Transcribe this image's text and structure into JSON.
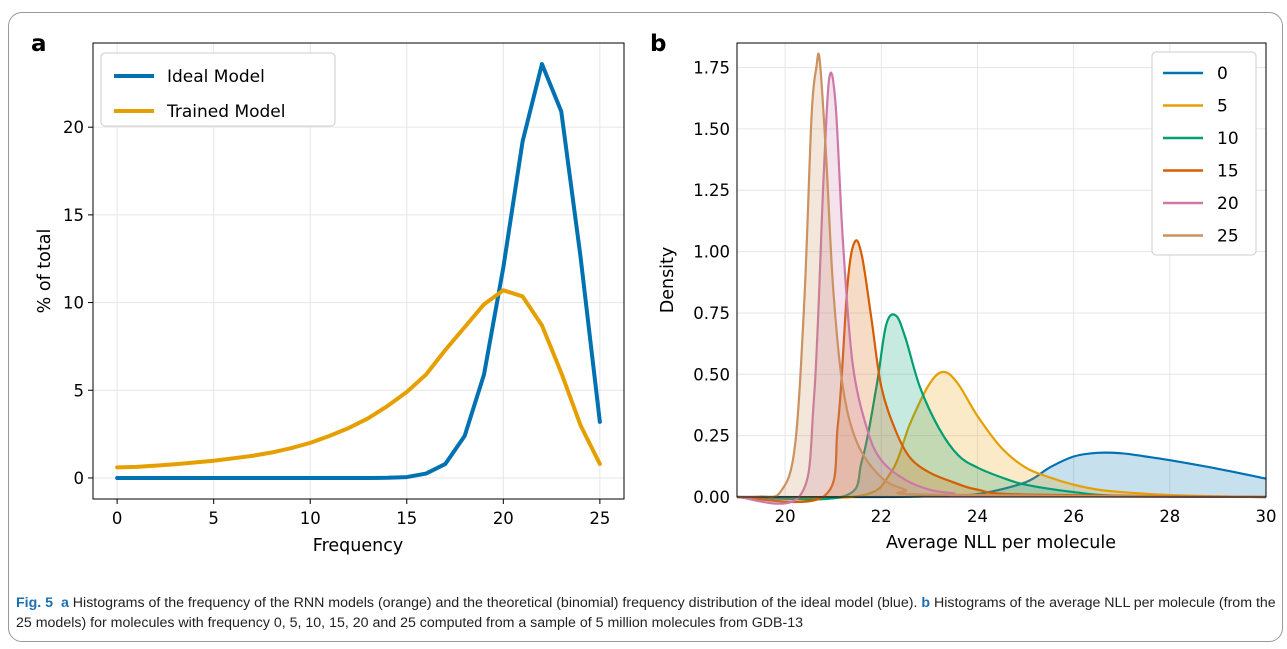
{
  "chart_data": [
    {
      "panel_label": "a",
      "type": "line",
      "xlabel": "Frequency",
      "ylabel": "% of total",
      "xlim": [
        -1.25,
        26.25
      ],
      "ylim": [
        -1.2,
        24.8
      ],
      "xticks": [
        0,
        5,
        10,
        15,
        20,
        25
      ],
      "yticks": [
        0,
        5,
        10,
        15,
        20
      ],
      "grid": true,
      "legend_position": "upper-left",
      "series": [
        {
          "name": "Ideal Model",
          "color": "#0072b2",
          "x": [
            0,
            1,
            2,
            3,
            4,
            5,
            6,
            7,
            8,
            9,
            10,
            11,
            12,
            13,
            14,
            15,
            16,
            17,
            18,
            19,
            20,
            21,
            22,
            23,
            24,
            25
          ],
          "y": [
            0,
            0,
            0,
            0,
            0,
            0,
            0,
            0,
            0,
            0,
            0,
            0,
            0,
            0,
            0.01,
            0.05,
            0.25,
            0.8,
            2.4,
            5.9,
            12.0,
            19.2,
            23.6,
            20.9,
            12.6,
            3.2
          ]
        },
        {
          "name": "Trained Model",
          "color": "#e69f00",
          "x": [
            0,
            1,
            2,
            3,
            4,
            5,
            6,
            7,
            8,
            9,
            10,
            11,
            12,
            13,
            14,
            15,
            16,
            17,
            18,
            19,
            20,
            21,
            22,
            23,
            24,
            25
          ],
          "y": [
            0.6,
            0.63,
            0.7,
            0.78,
            0.88,
            0.98,
            1.12,
            1.26,
            1.45,
            1.7,
            2.0,
            2.4,
            2.85,
            3.4,
            4.1,
            4.9,
            5.9,
            7.3,
            8.6,
            9.9,
            10.7,
            10.35,
            8.7,
            6.0,
            3.0,
            0.8
          ]
        }
      ]
    },
    {
      "panel_label": "b",
      "type": "area",
      "xlabel": "Average NLL per molecule",
      "ylabel": "Density",
      "xlim": [
        19,
        30
      ],
      "ylim": [
        0,
        1.85
      ],
      "xticks": [
        20,
        22,
        24,
        26,
        28,
        30
      ],
      "yticks": [
        "0.00",
        "0.25",
        "0.50",
        "0.75",
        "1.00",
        "1.25",
        "1.50",
        "1.75"
      ],
      "grid": true,
      "legend_position": "upper-right",
      "series": [
        {
          "name": "0",
          "color": "#0072b2",
          "x": [
            19,
            22,
            23,
            24,
            25,
            25.5,
            26,
            26.5,
            27,
            27.5,
            28,
            29,
            30
          ],
          "y": [
            0,
            0,
            0.003,
            0.012,
            0.06,
            0.12,
            0.165,
            0.18,
            0.178,
            0.165,
            0.15,
            0.115,
            0.075
          ]
        },
        {
          "name": "5",
          "color": "#e69f00",
          "x": [
            19,
            21.5,
            22.2,
            22.6,
            23,
            23.3,
            23.6,
            24,
            24.5,
            25,
            25.5,
            26,
            26.5,
            27,
            28,
            29,
            30
          ],
          "y": [
            0,
            0.003,
            0.1,
            0.3,
            0.46,
            0.51,
            0.46,
            0.33,
            0.2,
            0.12,
            0.08,
            0.05,
            0.03,
            0.02,
            0.008,
            0.003,
            0
          ]
        },
        {
          "name": "10",
          "color": "#009e73",
          "x": [
            19,
            21.2,
            21.6,
            21.9,
            22.1,
            22.3,
            22.5,
            22.8,
            23.2,
            23.6,
            24,
            24.5,
            25,
            26,
            27,
            30
          ],
          "y": [
            0,
            0.002,
            0.15,
            0.45,
            0.7,
            0.74,
            0.65,
            0.45,
            0.28,
            0.17,
            0.12,
            0.08,
            0.05,
            0.02,
            0.005,
            0
          ]
        },
        {
          "name": "15",
          "color": "#d55e00",
          "x": [
            19,
            20.8,
            21.1,
            21.3,
            21.45,
            21.6,
            21.8,
            22,
            22.3,
            22.6,
            23,
            23.5,
            24,
            25,
            30
          ],
          "y": [
            0,
            0.002,
            0.3,
            0.87,
            1.04,
            0.98,
            0.72,
            0.45,
            0.27,
            0.16,
            0.1,
            0.06,
            0.03,
            0.01,
            0
          ]
        },
        {
          "name": "20",
          "color": "#cc79a7",
          "x": [
            19,
            20.3,
            20.6,
            20.8,
            20.92,
            21.05,
            21.2,
            21.4,
            21.7,
            22,
            22.5,
            23,
            23.5,
            24,
            30
          ],
          "y": [
            0,
            0.003,
            0.4,
            1.3,
            1.71,
            1.6,
            1.05,
            0.55,
            0.28,
            0.15,
            0.07,
            0.03,
            0.015,
            0.005,
            0
          ]
        },
        {
          "name": "25",
          "color": "#ca9161",
          "x": [
            19,
            19.5,
            19.9,
            20.2,
            20.4,
            20.55,
            20.65,
            20.72,
            20.85,
            21,
            21.2,
            21.5,
            22,
            22.5,
            23,
            30
          ],
          "y": [
            0,
            0.002,
            0.02,
            0.2,
            0.8,
            1.55,
            1.75,
            1.78,
            1.4,
            0.85,
            0.45,
            0.22,
            0.08,
            0.03,
            0.01,
            0
          ]
        }
      ]
    }
  ],
  "caption": {
    "fig_label": "Fig. 5",
    "a_label": "a",
    "part_a": "Histograms of the frequency of the RNN models (orange) and the theoretical (binomial) frequency distribution of the ideal model (blue).",
    "b_label": "b",
    "part_b": "Histograms of the average NLL per molecule (from the 25 models) for molecules with frequency 0, 5, 10, 15, 20 and 25 computed from a sample of 5 million molecules from GDB-13"
  }
}
